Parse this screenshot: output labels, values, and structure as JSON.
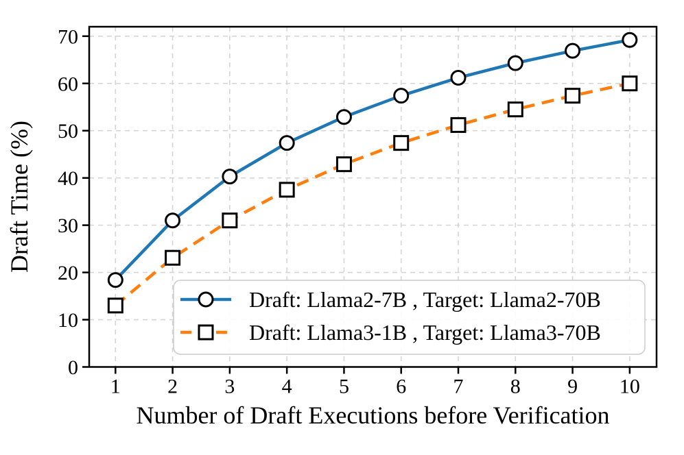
{
  "chart_data": {
    "type": "line",
    "title": "",
    "xlabel": "Number of Draft Executions before Verification",
    "ylabel": "Draft Time (%)",
    "x": [
      1,
      2,
      3,
      4,
      5,
      6,
      7,
      8,
      9,
      10
    ],
    "xticks": [
      1,
      2,
      3,
      4,
      5,
      6,
      7,
      8,
      9,
      10
    ],
    "yticks": [
      0,
      10,
      20,
      30,
      40,
      50,
      60,
      70
    ],
    "xlim": [
      0.54,
      10.47
    ],
    "ylim": [
      0,
      72
    ],
    "grid": true,
    "grid_style": "dashed",
    "legend_position": "inside-lower-right",
    "series": [
      {
        "name": "Draft: Llama2-7B , Target: Llama2-70B",
        "color": "#1f77b4",
        "line_style": "solid",
        "marker": "circle",
        "values": [
          18.4,
          31.0,
          40.3,
          47.4,
          52.9,
          57.4,
          61.2,
          64.3,
          66.9,
          69.2
        ]
      },
      {
        "name": "Draft: Llama3-1B , Target: Llama3-70B",
        "color": "#ff7f0e",
        "line_style": "dashed",
        "marker": "square",
        "values": [
          13.0,
          23.1,
          31.0,
          37.5,
          42.9,
          47.4,
          51.2,
          54.5,
          57.4,
          60.0
        ]
      }
    ],
    "styles": {
      "grid_color": "#d5d5d5",
      "axis_color": "#000000",
      "marker_fill": "#ffffff",
      "marker_edge": "#000000",
      "legend_border": "#cccccc",
      "legend_fill_opacity": 0.9
    }
  }
}
